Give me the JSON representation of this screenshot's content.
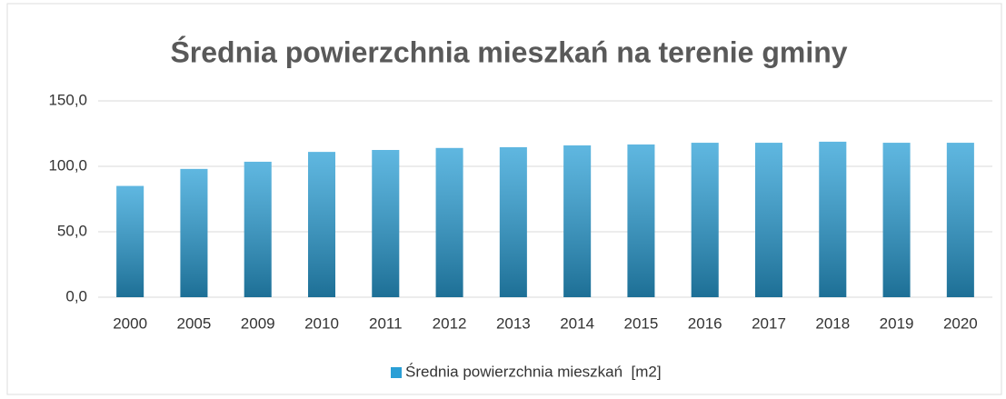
{
  "chart_data": {
    "type": "bar",
    "title": "Średnia powierzchnia mieszkań na terenie gminy",
    "categories": [
      "2000",
      "2005",
      "2009",
      "2010",
      "2011",
      "2012",
      "2013",
      "2014",
      "2015",
      "2016",
      "2017",
      "2018",
      "2019",
      "2020"
    ],
    "series": [
      {
        "name": "Średnia powierzchnia mieszkań  [m2]",
        "color": "#2a9fd6",
        "values": [
          85,
          98,
          103.5,
          111,
          112.5,
          114,
          114.6,
          116,
          116.7,
          118,
          118,
          118.8,
          118,
          118
        ]
      }
    ],
    "ylim": [
      0,
      150
    ],
    "yticks": [
      {
        "value": 0,
        "label": "0,0"
      },
      {
        "value": 50,
        "label": "50,0"
      },
      {
        "value": 100,
        "label": "100,0"
      },
      {
        "value": 150,
        "label": "150,0"
      }
    ],
    "grid": true,
    "legend": "bottom"
  }
}
